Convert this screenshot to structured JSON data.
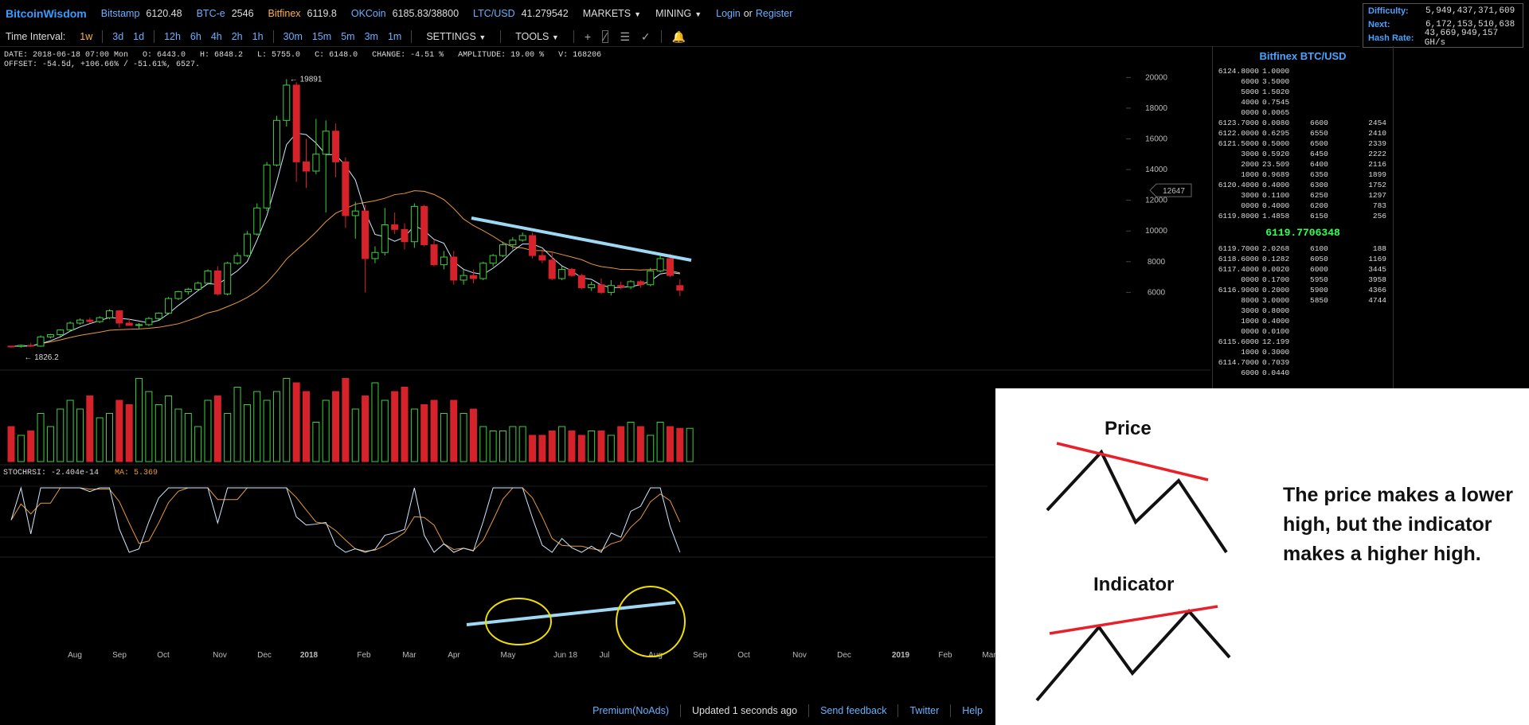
{
  "topbar": {
    "brand": "BitcoinWisdom",
    "markets": [
      {
        "name": "Bitstamp",
        "price": "6120.48",
        "color": "#6ab0ff"
      },
      {
        "name": "BTC-e",
        "price": "2546",
        "color": "#6ab0ff"
      },
      {
        "name": "Bitfinex",
        "price": "6119.8",
        "color": "#ffb04d"
      },
      {
        "name": "OKCoin",
        "price": "6185.83/38800",
        "color": "#6ab0ff"
      },
      {
        "name": "LTC/USD",
        "price": "41.279542",
        "color": "#6ab0ff"
      }
    ],
    "markets_menu": "MARKETS",
    "mining_menu": "MINING",
    "login": "Login",
    "or": "or",
    "register": "Register"
  },
  "stats": {
    "difficulty_label": "Difficulty:",
    "difficulty": "5,949,437,371,609",
    "next_label": "Next:",
    "next": "6,172,153,510,638",
    "hashrate_label": "Hash Rate:",
    "hashrate": "43,669,949,157 GH/s"
  },
  "toolbar": {
    "label": "Time Interval:",
    "intervals": [
      "1w",
      "3d",
      "1d",
      "12h",
      "6h",
      "4h",
      "2h",
      "1h",
      "30m",
      "15m",
      "5m",
      "3m",
      "1m"
    ],
    "active_interval": "1w",
    "settings": "SETTINGS",
    "tools": "TOOLS"
  },
  "info": {
    "line1": "DATE: 2018-06-18 07:00 Mon   O: 6443.0   H: 6848.2   L: 5755.0   C: 6148.0   CHANGE: -4.51 %   AMPLITUDE: 19.00 %   V: 168206",
    "line2": "OFFSET: -54.5d, +106.66% / -51.61%, 6527."
  },
  "chart_data": {
    "type": "candlestick",
    "pair": "Bitfinex BTC/USD",
    "interval": "1w",
    "y_ticks": [
      20000,
      18000,
      16000,
      14000,
      12000,
      10000,
      8000,
      6000
    ],
    "ylim": [
      1200,
      21000
    ],
    "high_label": "19891",
    "low_label": "1826.2",
    "crosshair_label": "12647",
    "x_ticks": [
      "Aug",
      "Sep",
      "Oct",
      "Nov",
      "Dec",
      "2018",
      "Feb",
      "Mar",
      "Apr",
      "May",
      "Jun 18",
      "Jul",
      "Aug",
      "Sep",
      "Oct",
      "Nov",
      "Dec",
      "2019",
      "Feb",
      "Mar"
    ],
    "candles": [
      [
        2500,
        2520,
        2400,
        2480
      ],
      [
        2480,
        2600,
        2400,
        2550
      ],
      [
        2550,
        2700,
        2450,
        2500
      ],
      [
        2500,
        3200,
        2450,
        3100
      ],
      [
        3100,
        3300,
        3000,
        3250
      ],
      [
        3250,
        3600,
        3150,
        3550
      ],
      [
        3550,
        4100,
        3450,
        4000
      ],
      [
        4000,
        4300,
        3900,
        4200
      ],
      [
        4200,
        4350,
        4000,
        4100
      ],
      [
        4100,
        4450,
        4000,
        4350
      ],
      [
        4350,
        4900,
        4250,
        4800
      ],
      [
        4800,
        4850,
        3700,
        4000
      ],
      [
        4000,
        4300,
        3900,
        3850
      ],
      [
        3850,
        4000,
        3600,
        3900
      ],
      [
        3900,
        4400,
        3800,
        4300
      ],
      [
        4300,
        4700,
        4200,
        4650
      ],
      [
        4650,
        5700,
        4550,
        5600
      ],
      [
        5600,
        6100,
        5500,
        6050
      ],
      [
        6050,
        6300,
        5850,
        6200
      ],
      [
        6200,
        6700,
        6100,
        6600
      ],
      [
        6600,
        7500,
        6500,
        7400
      ],
      [
        7400,
        7700,
        5800,
        5900
      ],
      [
        5900,
        8000,
        5800,
        7900
      ],
      [
        7900,
        8600,
        7800,
        8400
      ],
      [
        8400,
        10000,
        8300,
        9800
      ],
      [
        9800,
        11800,
        9700,
        11500
      ],
      [
        11500,
        14500,
        11300,
        14300
      ],
      [
        14300,
        17500,
        14200,
        17200
      ],
      [
        17200,
        19891,
        16800,
        19500
      ],
      [
        19500,
        19700,
        13200,
        14500
      ],
      [
        14500,
        16000,
        12800,
        13900
      ],
      [
        13900,
        17300,
        13700,
        15000
      ],
      [
        15000,
        17200,
        11200,
        16500
      ],
      [
        16500,
        17000,
        13500,
        14500
      ],
      [
        14500,
        14800,
        10200,
        11000
      ],
      [
        11000,
        11900,
        9500,
        11300
      ],
      [
        11300,
        11700,
        6000,
        8200
      ],
      [
        8200,
        9000,
        7900,
        8600
      ],
      [
        8600,
        11500,
        8400,
        10400
      ],
      [
        10400,
        11200,
        9800,
        10100
      ],
      [
        10100,
        10500,
        8800,
        9300
      ],
      [
        9300,
        11800,
        8900,
        11600
      ],
      [
        11600,
        11700,
        9000,
        9100
      ],
      [
        9100,
        9400,
        7700,
        7800
      ],
      [
        7800,
        8700,
        7500,
        8300
      ],
      [
        8300,
        8700,
        6500,
        6800
      ],
      [
        6800,
        7500,
        6500,
        7100
      ],
      [
        7100,
        7500,
        6600,
        6900
      ],
      [
        6900,
        8000,
        6800,
        7900
      ],
      [
        7900,
        8500,
        7700,
        8400
      ],
      [
        8400,
        9300,
        8300,
        9100
      ],
      [
        9100,
        9600,
        8800,
        9400
      ],
      [
        9400,
        9900,
        9300,
        9700
      ],
      [
        9700,
        9900,
        8200,
        8400
      ],
      [
        8400,
        8800,
        7900,
        8100
      ],
      [
        8100,
        8600,
        6800,
        6900
      ],
      [
        6900,
        7700,
        6800,
        7500
      ],
      [
        7500,
        7600,
        7000,
        7100
      ],
      [
        7100,
        7200,
        6200,
        6300
      ],
      [
        6300,
        6700,
        6100,
        6500
      ],
      [
        6500,
        6900,
        5900,
        6000
      ],
      [
        6000,
        6800,
        5800,
        6450
      ],
      [
        6450,
        6700,
        6200,
        6350
      ],
      [
        6350,
        6800,
        6200,
        6700
      ],
      [
        6700,
        6800,
        6300,
        6500
      ],
      [
        6500,
        7600,
        6400,
        7400
      ],
      [
        7400,
        8500,
        7300,
        8200
      ],
      [
        8200,
        8500,
        7000,
        7100
      ],
      [
        6443,
        6848.2,
        5755,
        6148
      ]
    ],
    "volume": [
      40,
      30,
      35,
      55,
      40,
      60,
      70,
      60,
      75,
      50,
      55,
      70,
      65,
      95,
      80,
      65,
      75,
      60,
      55,
      40,
      70,
      75,
      55,
      85,
      65,
      80,
      70,
      80,
      95,
      90,
      80,
      45,
      70,
      80,
      95,
      60,
      75,
      90,
      70,
      80,
      85,
      60,
      65,
      70,
      55,
      70,
      55,
      60,
      40,
      35,
      35,
      40,
      40,
      30,
      30,
      35,
      40,
      35,
      30,
      35,
      35,
      30,
      40,
      45,
      40,
      30,
      45,
      40,
      38,
      38
    ],
    "stochrsi_label": "STOCHRSI: -2.404e-14",
    "ma_label": "MA: 5.369",
    "annotation_price_trendline": "lower high",
    "annotation_indicator_trendline": "higher high"
  },
  "orderbook": {
    "title": "Bitfinex BTC/USD",
    "mid_price": "6119.7706348",
    "asks": [
      [
        "6124.8000",
        "1.0000",
        "",
        ""
      ],
      [
        "6000",
        "3.5000",
        "",
        ""
      ],
      [
        "5000",
        "1.5020",
        "",
        ""
      ],
      [
        "4000",
        "0.7545",
        "",
        ""
      ],
      [
        "0000",
        "0.0065",
        "",
        ""
      ],
      [
        "6123.7000",
        "0.0080",
        "6600",
        "2454"
      ],
      [
        "6122.0000",
        "0.6295",
        "6550",
        "2410"
      ],
      [
        "6121.5000",
        "0.5000",
        "6500",
        "2339"
      ],
      [
        "3000",
        "0.5920",
        "6450",
        "2222"
      ],
      [
        "2000",
        "23.509",
        "6400",
        "2116"
      ],
      [
        "1000",
        "0.9689",
        "6350",
        "1899"
      ],
      [
        "6120.4000",
        "0.4000",
        "6300",
        "1752"
      ],
      [
        "3000",
        "0.1100",
        "6250",
        "1297"
      ],
      [
        "0000",
        "0.4000",
        "6200",
        "783"
      ],
      [
        "6119.8000",
        "1.4858",
        "6150",
        "256"
      ]
    ],
    "bids": [
      [
        "6119.7000",
        "2.0268",
        "6100",
        "188"
      ],
      [
        "6118.6000",
        "0.1282",
        "6050",
        "1169"
      ],
      [
        "6117.4000",
        "0.0020",
        "6000",
        "3445"
      ],
      [
        "0000",
        "0.1700",
        "5950",
        "3958"
      ],
      [
        "6116.9000",
        "0.2000",
        "5900",
        "4366"
      ],
      [
        "8000",
        "3.0000",
        "5850",
        "4744"
      ],
      [
        "3000",
        "0.8000",
        "",
        ""
      ],
      [
        "1000",
        "0.4000",
        "",
        ""
      ],
      [
        "0000",
        "0.0100",
        "",
        ""
      ],
      [
        "6115.6000",
        "12.199",
        "",
        ""
      ],
      [
        "1000",
        "0.3000",
        "",
        ""
      ],
      [
        "6114.7000",
        "0.7039",
        "",
        ""
      ],
      [
        "6000",
        "0.0440",
        "",
        ""
      ]
    ]
  },
  "footer": {
    "premium": "Premium(NoAds)",
    "updated": "Updated 1 seconds ago",
    "feedback": "Send feedback",
    "twitter": "Twitter",
    "help": "Help"
  },
  "diagram": {
    "price_label": "Price",
    "indicator_label": "Indicator",
    "note": "The price makes a lower high, but the indicator makes a higher high."
  }
}
